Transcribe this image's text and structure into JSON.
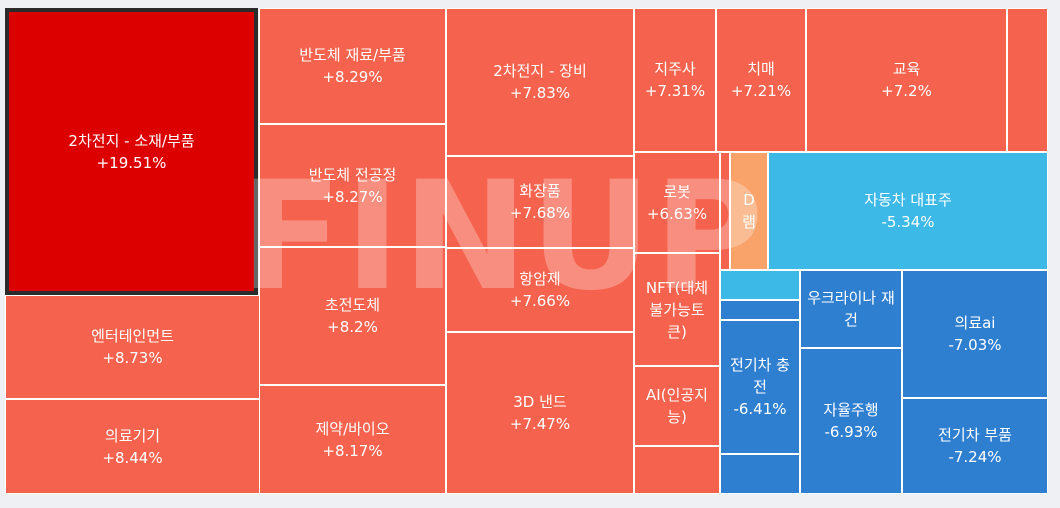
{
  "watermark": "FINUP",
  "chart_data": {
    "type": "treemap",
    "colors": {
      "strong_up": "#dd0000",
      "up": "#f5634e",
      "light_up": "#f9a36a",
      "light_down": "#3db9e8",
      "down": "#2f7fd0"
    },
    "items": [
      {
        "name": "2차전지 - 소재/부품",
        "value": "+19.51%"
      },
      {
        "name": "엔터테인먼트",
        "value": "+8.73%"
      },
      {
        "name": "의료기기",
        "value": "+8.44%"
      },
      {
        "name": "반도체 재료/부품",
        "value": "+8.29%"
      },
      {
        "name": "반도체 전공정",
        "value": "+8.27%"
      },
      {
        "name": "초전도체",
        "value": "+8.2%"
      },
      {
        "name": "제약/바이오",
        "value": "+8.17%"
      },
      {
        "name": "2차전지 - 장비",
        "value": "+7.83%"
      },
      {
        "name": "화장품",
        "value": "+7.68%"
      },
      {
        "name": "항암제",
        "value": "+7.66%"
      },
      {
        "name": "3D 낸드",
        "value": "+7.47%"
      },
      {
        "name": "지주사",
        "value": "+7.31%"
      },
      {
        "name": "치매",
        "value": "+7.21%"
      },
      {
        "name": "교육",
        "value": "+7.2%"
      },
      {
        "name": "로봇",
        "value": "+6.63%"
      },
      {
        "name": "NFT(대체 불가능토 큰)",
        "value": ""
      },
      {
        "name": "AI(인공지 능)",
        "value": ""
      },
      {
        "name": "D 램",
        "value": ""
      },
      {
        "name": "자동차 대표주",
        "value": "-5.34%"
      },
      {
        "name": "전기차 충전",
        "value": "-6.41%"
      },
      {
        "name": "우크라이나 재건",
        "value": ""
      },
      {
        "name": "자율주행",
        "value": "-6.93%"
      },
      {
        "name": "의료ai",
        "value": "-7.03%"
      },
      {
        "name": "전기차 부품",
        "value": "-7.24%"
      }
    ]
  }
}
